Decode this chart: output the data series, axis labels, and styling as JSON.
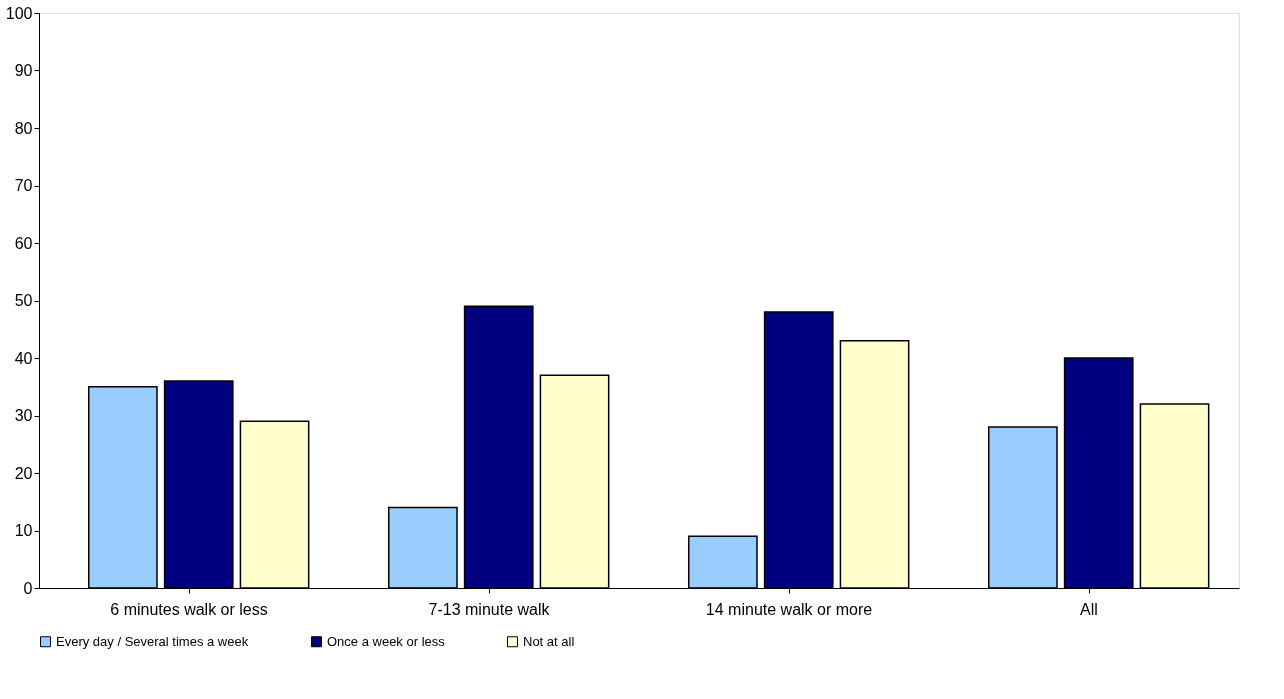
{
  "chart_data": {
    "type": "bar",
    "categories": [
      "6 minutes walk or less",
      "7-13 minute walk",
      "14 minute walk or more",
      "All"
    ],
    "series": [
      {
        "name": "Every day / Several times a week",
        "color": "#99ccff",
        "values": [
          35,
          14,
          9,
          28
        ]
      },
      {
        "name": "Once a week or less",
        "color": "#000080",
        "values": [
          36,
          49,
          48,
          40
        ]
      },
      {
        "name": "Not at all",
        "color": "#ffffcc",
        "values": [
          29,
          37,
          43,
          32
        ]
      }
    ],
    "ylim": [
      0,
      100
    ],
    "yticks": [
      0,
      10,
      20,
      30,
      40,
      50,
      60,
      70,
      80,
      90,
      100
    ],
    "grid": false,
    "legend": "bottom"
  }
}
